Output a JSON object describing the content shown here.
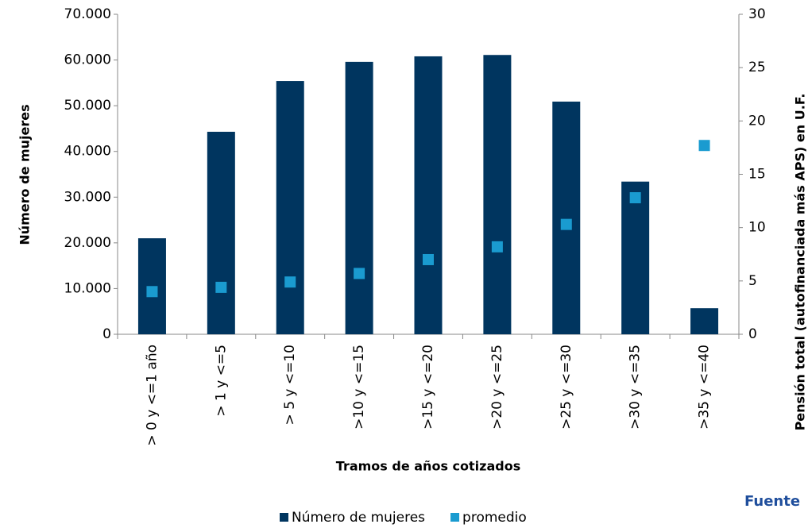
{
  "chart_data": {
    "type": "bar",
    "x_label": "Tramos de años cotizados",
    "y_label": "Número de mujeres",
    "y2_label": "Pensión total (autofinanciada más APS) en U.F.",
    "source": "Fuente",
    "categories": [
      "> 0 y <=1 año",
      "> 1 y <=5",
      "> 5 y <=10",
      ">10 y <=15",
      ">15 y <=20",
      ">20 y <=25",
      ">25 y <=30",
      ">30 y <=35",
      ">35 y <=40"
    ],
    "series": [
      {
        "name": "Número de mujeres",
        "color": "#00355f",
        "type": "bar",
        "values": [
          21000,
          44300,
          55400,
          59600,
          60800,
          61100,
          50900,
          33400,
          5700
        ]
      },
      {
        "name": "promedio",
        "color": "#1a9bd0",
        "type": "scatter",
        "axis": "y2",
        "values": [
          4.0,
          4.4,
          4.9,
          5.7,
          7.0,
          8.2,
          10.3,
          12.8,
          17.7
        ]
      }
    ],
    "ylim": [
      0,
      70000
    ],
    "yticks": [
      {
        "value": 0,
        "label": "0"
      },
      {
        "value": 10000,
        "label": "10.000"
      },
      {
        "value": 20000,
        "label": "20.000"
      },
      {
        "value": 30000,
        "label": "30.000"
      },
      {
        "value": 40000,
        "label": "40.000"
      },
      {
        "value": 50000,
        "label": "50.000"
      },
      {
        "value": 60000,
        "label": "60.000"
      },
      {
        "value": 70000,
        "label": "70.000"
      }
    ],
    "y2lim": [
      0,
      30
    ],
    "y2ticks": [
      0,
      5,
      10,
      15,
      20,
      25,
      30
    ],
    "legend": "bottom"
  }
}
